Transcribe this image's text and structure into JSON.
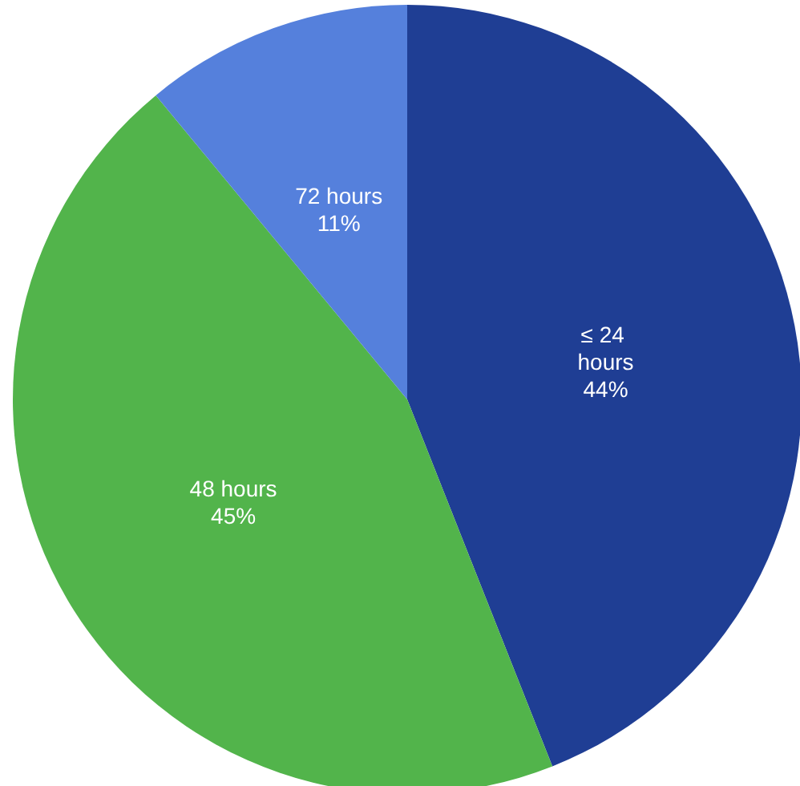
{
  "chart_data": {
    "type": "pie",
    "categories": [
      "≤ 24 hours",
      "48 hours",
      "72 hours"
    ],
    "values": [
      44,
      45,
      11
    ],
    "colors": [
      "#1f3e94",
      "#52b44b",
      "#5580dc"
    ],
    "value_labels": [
      "44%",
      "45%",
      "11%"
    ],
    "legend": false
  }
}
